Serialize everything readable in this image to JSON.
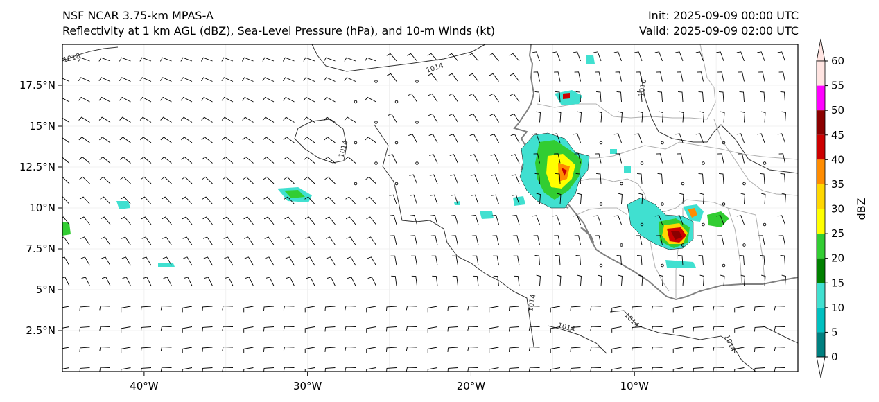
{
  "header": {
    "model": "NSF NCAR 3.75-km MPAS-A",
    "fields": "Reflectivity at 1 km AGL (dBZ), Sea-Level Pressure (hPa), and 10-m Winds (kt)",
    "init": "Init: 2025-09-09 00:00 UTC",
    "valid": "Valid: 2025-09-09 02:00 UTC"
  },
  "map": {
    "lon_range": [
      -45,
      0
    ],
    "lat_range": [
      0,
      20
    ],
    "lon_ticks": [
      {
        "value": -40,
        "label": "40°W"
      },
      {
        "value": -30,
        "label": "30°W"
      },
      {
        "value": -20,
        "label": "20°W"
      },
      {
        "value": -10,
        "label": "10°W"
      }
    ],
    "lat_ticks": [
      {
        "value": 2.5,
        "label": "2.5°N"
      },
      {
        "value": 5,
        "label": "5°N"
      },
      {
        "value": 7.5,
        "label": "7.5°N"
      },
      {
        "value": 10,
        "label": "10°N"
      },
      {
        "value": 12.5,
        "label": "12.5°N"
      },
      {
        "value": 15,
        "label": "15°N"
      },
      {
        "value": 17.5,
        "label": "17.5°N"
      }
    ],
    "isobar_labels": [
      "1018",
      "1014",
      "1014",
      "1010",
      "1014",
      "1014",
      "1014",
      "1014"
    ]
  },
  "colorbar": {
    "label": "dBZ",
    "levels": [
      {
        "value": "0",
        "color": "#008080"
      },
      {
        "value": "5",
        "color": "#00c0c0"
      },
      {
        "value": "10",
        "color": "#40e0d0"
      },
      {
        "value": "15",
        "color": "#008000"
      },
      {
        "value": "20",
        "color": "#32cd32"
      },
      {
        "value": "25",
        "color": "#ffff00"
      },
      {
        "value": "30",
        "color": "#ffd700"
      },
      {
        "value": "35",
        "color": "#ff8c00"
      },
      {
        "value": "40",
        "color": "#cc0000"
      },
      {
        "value": "45",
        "color": "#8b0000"
      },
      {
        "value": "50",
        "color": "#ff00ff"
      },
      {
        "value": "55",
        "color": "#ffe4e1"
      },
      {
        "value": "60",
        "color": "#ffe4e1"
      }
    ]
  }
}
